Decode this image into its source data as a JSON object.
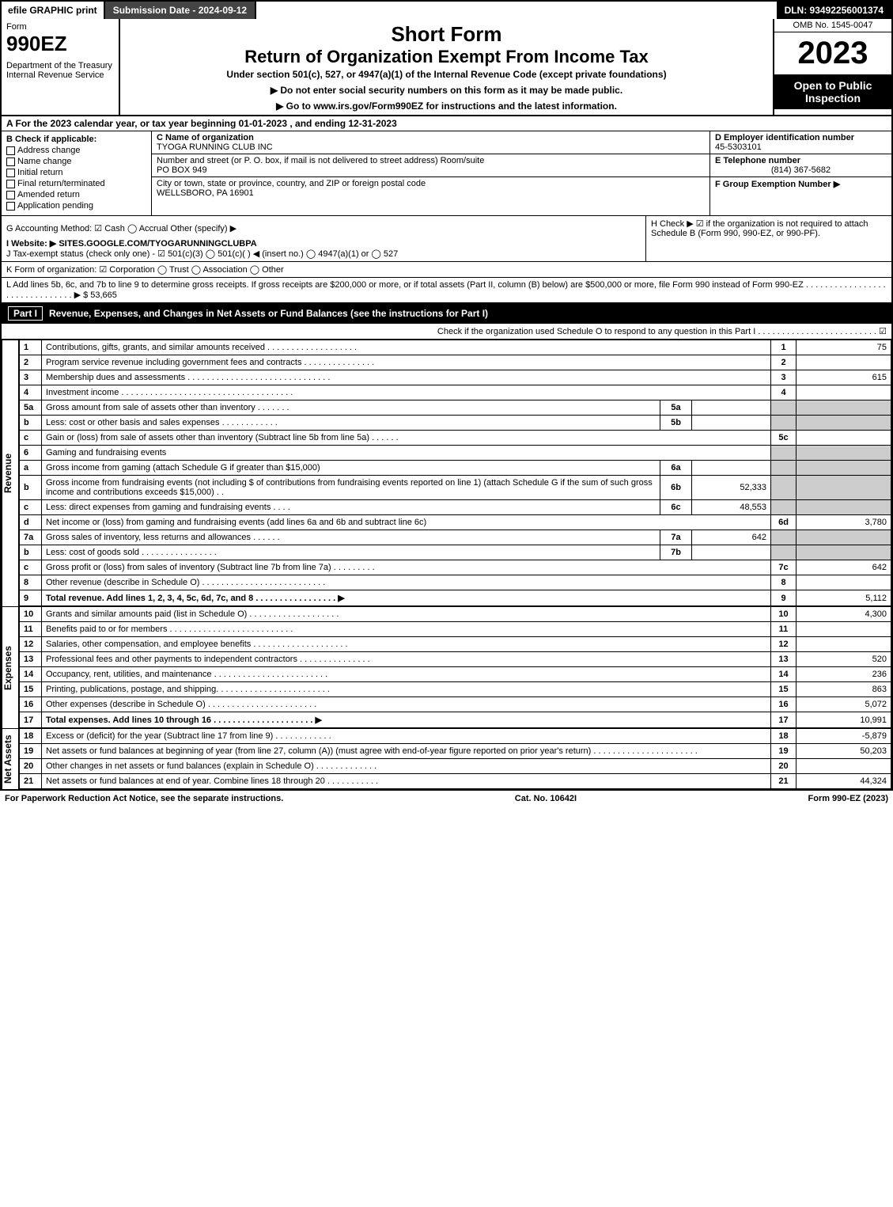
{
  "topbar": {
    "efile": "efile GRAPHIC print",
    "sub_label": "Submission Date - 2024-09-12",
    "dln": "DLN: 93492256001374"
  },
  "header": {
    "form_word": "Form",
    "form_no": "990EZ",
    "dept": "Department of the Treasury\nInternal Revenue Service",
    "short": "Short Form",
    "title": "Return of Organization Exempt From Income Tax",
    "subtitle": "Under section 501(c), 527, or 4947(a)(1) of the Internal Revenue Code (except private foundations)",
    "warn": "▶ Do not enter social security numbers on this form as it may be made public.",
    "goto": "▶ Go to www.irs.gov/Form990EZ for instructions and the latest information.",
    "omb": "OMB No. 1545-0047",
    "year": "2023",
    "open": "Open to Public Inspection"
  },
  "A": "A  For the 2023 calendar year, or tax year beginning 01-01-2023 , and ending 12-31-2023",
  "B": {
    "label": "B  Check if applicable:",
    "opts": [
      "Address change",
      "Name change",
      "Initial return",
      "Final return/terminated",
      "Amended return",
      "Application pending"
    ]
  },
  "C": {
    "c_label": "C Name of organization",
    "name": "TYOGA RUNNING CLUB INC",
    "addr_label": "Number and street (or P. O. box, if mail is not delivered to street address)     Room/suite",
    "addr": "PO BOX 949",
    "city_label": "City or town, state or province, country, and ZIP or foreign postal code",
    "city": "WELLSBORO, PA  16901"
  },
  "D": {
    "label": "D Employer identification number",
    "val": "45-5303101"
  },
  "E": {
    "label": "E Telephone number",
    "val": "(814) 367-5682"
  },
  "F": {
    "label": "F Group Exemption Number  ▶"
  },
  "G": "G Accounting Method:   ☑ Cash   ◯ Accrual   Other (specify) ▶",
  "H": "H   Check ▶  ☑  if the organization is not required to attach Schedule B (Form 990, 990-EZ, or 990-PF).",
  "I": "I Website: ▶ SITES.GOOGLE.COM/TYOGARUNNINGCLUBPA",
  "J": "J Tax-exempt status (check only one) - ☑ 501(c)(3)  ◯ 501(c)( ) ◀ (insert no.)  ◯ 4947(a)(1) or  ◯ 527",
  "K": "K Form of organization:  ☑ Corporation   ◯ Trust   ◯ Association   ◯ Other",
  "L": "L Add lines 5b, 6c, and 7b to line 9 to determine gross receipts. If gross receipts are $200,000 or more, or if total assets (Part II, column (B) below) are $500,000 or more, file Form 990 instead of Form 990-EZ . . . . . . . . . . . . . . . . . . . . . . . . . . . . . . . ▶ $ 53,665",
  "partI": {
    "label": "Part I",
    "title": "Revenue, Expenses, and Changes in Net Assets or Fund Balances (see the instructions for Part I)",
    "check": "Check if the organization used Schedule O to respond to any question in this Part I . . . . . . . . . . . . . . . . . . . . . . . . .  ☑"
  },
  "sections": {
    "rev_label": "Revenue",
    "exp_label": "Expenses",
    "na_label": "Net Assets"
  },
  "rows": [
    {
      "n": "1",
      "d": "Contributions, gifts, grants, and similar amounts received . . . . . . . . . . . . . . . . . . .",
      "ln": "1",
      "amt": "75"
    },
    {
      "n": "2",
      "d": "Program service revenue including government fees and contracts . . . . . . . . . . . . . . .",
      "ln": "2",
      "amt": ""
    },
    {
      "n": "3",
      "d": "Membership dues and assessments . . . . . . . . . . . . . . . . . . . . . . . . . . . . . .",
      "ln": "3",
      "amt": "615"
    },
    {
      "n": "4",
      "d": "Investment income . . . . . . . . . . . . . . . . . . . . . . . . . . . . . . . . . . . .",
      "ln": "4",
      "amt": ""
    },
    {
      "n": "5a",
      "d": "Gross amount from sale of assets other than inventory . . . . . . .",
      "ib": "5a",
      "iv": "",
      "gray": true
    },
    {
      "n": "b",
      "d": "Less: cost or other basis and sales expenses . . . . . . . . . . . .",
      "ib": "5b",
      "iv": "",
      "gray": true
    },
    {
      "n": "c",
      "d": "Gain or (loss) from sale of assets other than inventory (Subtract line 5b from line 5a) . . . . . .",
      "ln": "5c",
      "amt": ""
    },
    {
      "n": "6",
      "d": "Gaming and fundraising events",
      "gray": true,
      "full": true
    },
    {
      "n": "a",
      "d": "Gross income from gaming (attach Schedule G if greater than $15,000)",
      "ib": "6a",
      "iv": "",
      "gray": true
    },
    {
      "n": "b",
      "d": "Gross income from fundraising events (not including $                          of contributions from fundraising events reported on line 1) (attach Schedule G if the sum of such gross income and contributions exceeds $15,000)     .  .",
      "ib": "6b",
      "iv": "52,333",
      "gray": true
    },
    {
      "n": "c",
      "d": "Less: direct expenses from gaming and fundraising events         . . . .",
      "ib": "6c",
      "iv": "48,553",
      "gray": true
    },
    {
      "n": "d",
      "d": "Net income or (loss) from gaming and fundraising events (add lines 6a and 6b and subtract line 6c)",
      "ln": "6d",
      "amt": "3,780"
    },
    {
      "n": "7a",
      "d": "Gross sales of inventory, less returns and allowances . . . . . .",
      "ib": "7a",
      "iv": "642",
      "gray": true
    },
    {
      "n": "b",
      "d": "Less: cost of goods sold        . . . . . . . . . . . . . . . .",
      "ib": "7b",
      "iv": "",
      "gray": true
    },
    {
      "n": "c",
      "d": "Gross profit or (loss) from sales of inventory (Subtract line 7b from line 7a) . . . . . . . . .",
      "ln": "7c",
      "amt": "642"
    },
    {
      "n": "8",
      "d": "Other revenue (describe in Schedule O) . . . . . . . . . . . . . . . . . . . . . . . . . .",
      "ln": "8",
      "amt": ""
    },
    {
      "n": "9",
      "d": "Total revenue. Add lines 1, 2, 3, 4, 5c, 6d, 7c, and 8 . . . . . . . . . . . . . . . . .  ▶",
      "ln": "9",
      "amt": "5,112",
      "bold": true
    }
  ],
  "exp_rows": [
    {
      "n": "10",
      "d": "Grants and similar amounts paid (list in Schedule O) . . . . . . . . . . . . . . . . . . .",
      "ln": "10",
      "amt": "4,300"
    },
    {
      "n": "11",
      "d": "Benefits paid to or for members     . . . . . . . . . . . . . . . . . . . . . . . . . .",
      "ln": "11",
      "amt": ""
    },
    {
      "n": "12",
      "d": "Salaries, other compensation, and employee benefits . . . . . . . . . . . . . . . . . . . .",
      "ln": "12",
      "amt": ""
    },
    {
      "n": "13",
      "d": "Professional fees and other payments to independent contractors . . . . . . . . . . . . . . .",
      "ln": "13",
      "amt": "520"
    },
    {
      "n": "14",
      "d": "Occupancy, rent, utilities, and maintenance . . . . . . . . . . . . . . . . . . . . . . . .",
      "ln": "14",
      "amt": "236"
    },
    {
      "n": "15",
      "d": "Printing, publications, postage, and shipping. . . . . . . . . . . . . . . . . . . . . . . .",
      "ln": "15",
      "amt": "863"
    },
    {
      "n": "16",
      "d": "Other expenses (describe in Schedule O)     . . . . . . . . . . . . . . . . . . . . . . .",
      "ln": "16",
      "amt": "5,072"
    },
    {
      "n": "17",
      "d": "Total expenses. Add lines 10 through 16     . . . . . . . . . . . . . . . . . . . . .  ▶",
      "ln": "17",
      "amt": "10,991",
      "bold": true
    }
  ],
  "na_rows": [
    {
      "n": "18",
      "d": "Excess or (deficit) for the year (Subtract line 17 from line 9)        . . . . . . . . . . . .",
      "ln": "18",
      "amt": "-5,879"
    },
    {
      "n": "19",
      "d": "Net assets or fund balances at beginning of year (from line 27, column (A)) (must agree with end-of-year figure reported on prior year's return) . . . . . . . . . . . . . . . . . . . . . .",
      "ln": "19",
      "amt": "50,203"
    },
    {
      "n": "20",
      "d": "Other changes in net assets or fund balances (explain in Schedule O) . . . . . . . . . . . . .",
      "ln": "20",
      "amt": ""
    },
    {
      "n": "21",
      "d": "Net assets or fund balances at end of year. Combine lines 18 through 20 . . . . . . . . . . .",
      "ln": "21",
      "amt": "44,324"
    }
  ],
  "footer": {
    "l": "For Paperwork Reduction Act Notice, see the separate instructions.",
    "c": "Cat. No. 10642I",
    "r": "Form 990-EZ (2023)"
  }
}
